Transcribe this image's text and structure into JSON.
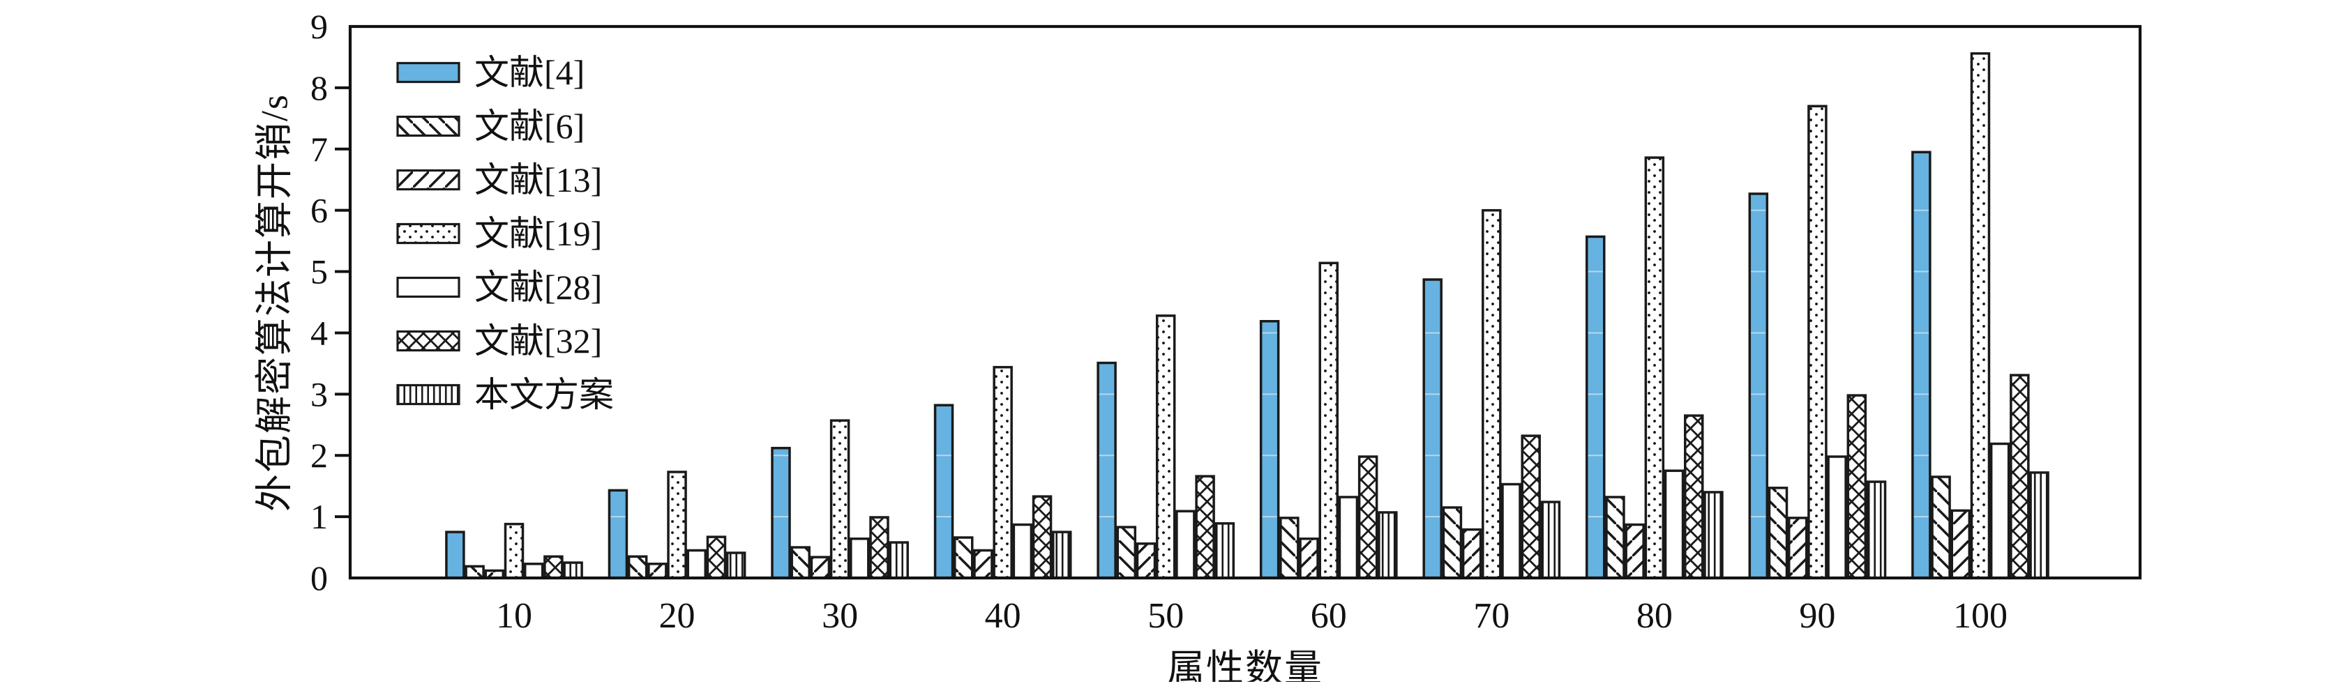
{
  "chart_data": {
    "type": "bar",
    "title": "",
    "xlabel": "属性数量",
    "ylabel": "外包解密算法计算开销/s",
    "categories": [
      10,
      20,
      30,
      40,
      50,
      60,
      70,
      80,
      90,
      100
    ],
    "ylim": [
      0,
      9
    ],
    "yticks": [
      0,
      1,
      2,
      3,
      4,
      5,
      6,
      7,
      8,
      9
    ],
    "grid": false,
    "legend_position": "upper-left",
    "bar_edge_color": "#1a1a1a",
    "accent_color": "#66b2e0",
    "series": [
      {
        "name": "文献[4]",
        "pattern": "solid",
        "fill": "#66b2e0",
        "values": [
          0.75,
          1.43,
          2.12,
          2.82,
          3.51,
          4.19,
          4.87,
          5.57,
          6.27,
          6.95
        ]
      },
      {
        "name": "文献[6]",
        "pattern": "backslash",
        "fill": "#ffffff",
        "values": [
          0.19,
          0.35,
          0.5,
          0.66,
          0.83,
          0.98,
          1.15,
          1.32,
          1.47,
          1.65
        ]
      },
      {
        "name": "文献[13]",
        "pattern": "slash",
        "fill": "#ffffff",
        "values": [
          0.12,
          0.23,
          0.34,
          0.45,
          0.56,
          0.64,
          0.79,
          0.87,
          0.98,
          1.1
        ]
      },
      {
        "name": "文献[19]",
        "pattern": "dots",
        "fill": "#ffffff",
        "values": [
          0.88,
          1.73,
          2.57,
          3.44,
          4.28,
          5.14,
          6.0,
          6.86,
          7.7,
          8.56
        ]
      },
      {
        "name": "文献[28]",
        "pattern": "plain",
        "fill": "#ffffff",
        "values": [
          0.23,
          0.45,
          0.64,
          0.87,
          1.09,
          1.32,
          1.53,
          1.75,
          1.98,
          2.19
        ]
      },
      {
        "name": "文献[32]",
        "pattern": "crosshatch",
        "fill": "#ffffff",
        "values": [
          0.35,
          0.67,
          0.99,
          1.33,
          1.66,
          1.98,
          2.32,
          2.65,
          2.98,
          3.31
        ]
      },
      {
        "name": "本文方案",
        "pattern": "vertical",
        "fill": "#ffffff",
        "values": [
          0.25,
          0.41,
          0.58,
          0.75,
          0.89,
          1.07,
          1.24,
          1.4,
          1.57,
          1.72
        ]
      }
    ]
  }
}
